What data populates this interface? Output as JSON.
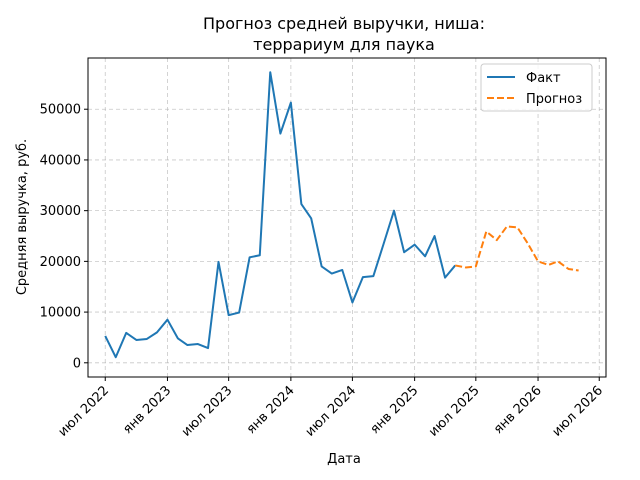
{
  "chart_data": {
    "type": "line",
    "title_line1": "Прогноз средней выручки, ниша:",
    "title_line2": "террариум для паука",
    "xlabel": "Дата",
    "ylabel": "Средняя выручка, руб.",
    "xlim": [
      "2022-05-11",
      "2026-07-21"
    ],
    "ylim": [
      -2800,
      60100
    ],
    "x_ticks": [
      {
        "date": "2022-07-01",
        "label": "июл 2022"
      },
      {
        "date": "2023-01-01",
        "label": "янв 2023"
      },
      {
        "date": "2023-07-01",
        "label": "июл 2023"
      },
      {
        "date": "2024-01-01",
        "label": "янв 2024"
      },
      {
        "date": "2024-07-01",
        "label": "июл 2024"
      },
      {
        "date": "2025-01-01",
        "label": "янв 2025"
      },
      {
        "date": "2025-07-01",
        "label": "июл 2025"
      },
      {
        "date": "2026-01-01",
        "label": "янв 2026"
      },
      {
        "date": "2026-07-01",
        "label": "июл 2026"
      }
    ],
    "y_ticks": [
      {
        "value": 0,
        "label": "0"
      },
      {
        "value": 10000,
        "label": "10000"
      },
      {
        "value": 20000,
        "label": "20000"
      },
      {
        "value": 30000,
        "label": "30000"
      },
      {
        "value": 40000,
        "label": "40000"
      },
      {
        "value": 50000,
        "label": "50000"
      }
    ],
    "grid": true,
    "legend_position": "top-right",
    "series": [
      {
        "name": "Факт",
        "color": "#1f77b4",
        "dash": "solid",
        "points": [
          {
            "x": "2022-07-01",
            "y": 5300
          },
          {
            "x": "2022-08-01",
            "y": 1100
          },
          {
            "x": "2022-09-01",
            "y": 5900
          },
          {
            "x": "2022-10-01",
            "y": 4500
          },
          {
            "x": "2022-11-01",
            "y": 4700
          },
          {
            "x": "2022-12-01",
            "y": 6000
          },
          {
            "x": "2023-01-01",
            "y": 8500
          },
          {
            "x": "2023-02-01",
            "y": 4800
          },
          {
            "x": "2023-03-01",
            "y": 3500
          },
          {
            "x": "2023-04-01",
            "y": 3700
          },
          {
            "x": "2023-05-01",
            "y": 2900
          },
          {
            "x": "2023-06-01",
            "y": 19900
          },
          {
            "x": "2023-07-01",
            "y": 9400
          },
          {
            "x": "2023-08-01",
            "y": 9900
          },
          {
            "x": "2023-09-01",
            "y": 20800
          },
          {
            "x": "2023-10-01",
            "y": 21200
          },
          {
            "x": "2023-11-01",
            "y": 57300
          },
          {
            "x": "2023-12-01",
            "y": 45200
          },
          {
            "x": "2024-01-01",
            "y": 51300
          },
          {
            "x": "2024-02-01",
            "y": 31300
          },
          {
            "x": "2024-03-01",
            "y": 28500
          },
          {
            "x": "2024-04-01",
            "y": 19000
          },
          {
            "x": "2024-05-01",
            "y": 17600
          },
          {
            "x": "2024-06-01",
            "y": 18300
          },
          {
            "x": "2024-07-01",
            "y": 11900
          },
          {
            "x": "2024-08-01",
            "y": 16900
          },
          {
            "x": "2024-09-01",
            "y": 17100
          },
          {
            "x": "2024-10-01",
            "y": 23400
          },
          {
            "x": "2024-11-01",
            "y": 30000
          },
          {
            "x": "2024-12-01",
            "y": 21800
          },
          {
            "x": "2025-01-01",
            "y": 23300
          },
          {
            "x": "2025-02-01",
            "y": 21000
          },
          {
            "x": "2025-03-01",
            "y": 25000
          },
          {
            "x": "2025-04-01",
            "y": 16800
          },
          {
            "x": "2025-05-01",
            "y": 19200
          }
        ]
      },
      {
        "name": "Прогноз",
        "color": "#ff7f0e",
        "dash": "dashed",
        "points": [
          {
            "x": "2025-05-01",
            "y": 19200
          },
          {
            "x": "2025-06-01",
            "y": 18800
          },
          {
            "x": "2025-07-01",
            "y": 19000
          },
          {
            "x": "2025-08-01",
            "y": 25900
          },
          {
            "x": "2025-09-01",
            "y": 24200
          },
          {
            "x": "2025-10-01",
            "y": 26900
          },
          {
            "x": "2025-11-01",
            "y": 26700
          },
          {
            "x": "2025-12-01",
            "y": 23600
          },
          {
            "x": "2026-01-01",
            "y": 20000
          },
          {
            "x": "2026-02-01",
            "y": 19300
          },
          {
            "x": "2026-03-01",
            "y": 20000
          },
          {
            "x": "2026-04-01",
            "y": 18500
          },
          {
            "x": "2026-05-01",
            "y": 18200
          }
        ]
      }
    ]
  }
}
